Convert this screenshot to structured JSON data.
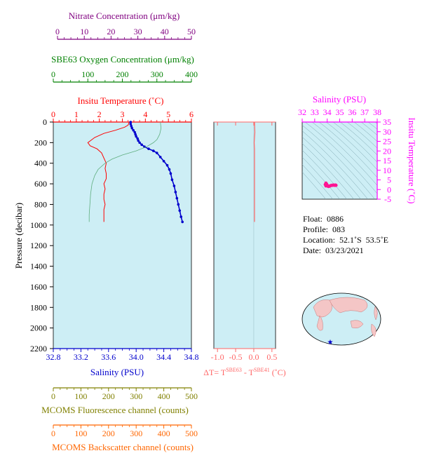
{
  "colors": {
    "nitrate": "#800080",
    "oxygen": "#008000",
    "temperature": "#ff0000",
    "salinity": "#0000cc",
    "delta": "#ff6666",
    "ts_axis": "#ff00ff",
    "fluorescence": "#808000",
    "backscatter": "#ff6600",
    "plot_bg": "#cdeef5"
  },
  "top_axes": {
    "nitrate": {
      "title": "Nitrate Concentration (μm/kg)",
      "ticks": [
        "0",
        "10",
        "20",
        "30",
        "40",
        "50"
      ]
    },
    "oxygen": {
      "title": "SBE63 Oxygen Concentration (μm/kg)",
      "ticks": [
        "0",
        "100",
        "200",
        "300",
        "400"
      ]
    },
    "temperature": {
      "title": "Insitu Temperature (˚C)",
      "ticks": [
        "0",
        "1",
        "2",
        "3",
        "4",
        "5",
        "6"
      ]
    }
  },
  "main_plot": {
    "ylabel": "Pressure (decibar)",
    "yticks": [
      "0",
      "200",
      "400",
      "600",
      "800",
      "1000",
      "1200",
      "1400",
      "1600",
      "1800",
      "2000",
      "2200"
    ],
    "xticks": [
      "32.8",
      "33.2",
      "33.6",
      "34.0",
      "34.4",
      "34.8"
    ],
    "xlabel": "Salinity (PSU)"
  },
  "delta_plot": {
    "xticks": [
      "-1.0",
      "-0.5",
      "0.0",
      "0.5"
    ],
    "xlabel": "ΔT= T",
    "sup1": "SBE63",
    "mid": " - T",
    "sup2": "SBE41",
    "unit": " (˚C)"
  },
  "ts_plot": {
    "title": "Salinity (PSU)",
    "xticks": [
      "32",
      "33",
      "34",
      "35",
      "36",
      "37",
      "38"
    ],
    "yticks": [
      "-5",
      "0",
      "5",
      "10",
      "15",
      "20",
      "25",
      "30",
      "35"
    ],
    "ylabel": "Insitu Temperature (˚C)"
  },
  "info": {
    "float": "Float:  0886",
    "profile": "Profile:  083",
    "location": "Location:  52.1˚S  53.5˚E",
    "date": "Date:  03/23/2021"
  },
  "bottom_axes": {
    "fluorescence": {
      "title": "MCOMS Fluorescence channel (counts)",
      "ticks": [
        "0",
        "100",
        "200",
        "300",
        "400",
        "500"
      ]
    },
    "backscatter": {
      "title": "MCOMS Backscatter channel (counts)",
      "ticks": [
        "0",
        "100",
        "200",
        "300",
        "400",
        "500"
      ]
    }
  },
  "chart_data": [
    {
      "type": "line",
      "name": "profile",
      "ylim": [
        2200,
        0
      ],
      "series": [
        {
          "name": "Salinity (PSU)",
          "xlim": [
            32.8,
            34.8
          ],
          "points": [
            [
              33.92,
              0
            ],
            [
              33.92,
              20
            ],
            [
              33.93,
              40
            ],
            [
              33.94,
              60
            ],
            [
              33.96,
              80
            ],
            [
              33.98,
              100
            ],
            [
              33.99,
              120
            ],
            [
              34.0,
              140
            ],
            [
              34.02,
              160
            ],
            [
              34.03,
              180
            ],
            [
              34.05,
              200
            ],
            [
              34.08,
              220
            ],
            [
              34.12,
              240
            ],
            [
              34.18,
              260
            ],
            [
              34.25,
              280
            ],
            [
              34.3,
              300
            ],
            [
              34.35,
              340
            ],
            [
              34.4,
              380
            ],
            [
              34.45,
              420
            ],
            [
              34.48,
              460
            ],
            [
              34.5,
              500
            ],
            [
              34.52,
              560
            ],
            [
              34.55,
              620
            ],
            [
              34.57,
              680
            ],
            [
              34.59,
              740
            ],
            [
              34.61,
              800
            ],
            [
              34.63,
              860
            ],
            [
              34.65,
              920
            ],
            [
              34.67,
              970
            ]
          ]
        },
        {
          "name": "Insitu Temperature (˚C)",
          "xlim": [
            0,
            6
          ],
          "points": [
            [
              3.3,
              0
            ],
            [
              3.25,
              30
            ],
            [
              3.1,
              50
            ],
            [
              2.7,
              80
            ],
            [
              2.2,
              110
            ],
            [
              1.8,
              150
            ],
            [
              1.5,
              200
            ],
            [
              1.6,
              230
            ],
            [
              1.9,
              260
            ],
            [
              2.1,
              300
            ],
            [
              2.2,
              350
            ],
            [
              2.3,
              400
            ],
            [
              2.25,
              450
            ],
            [
              2.3,
              500
            ],
            [
              2.3,
              550
            ],
            [
              2.2,
              600
            ],
            [
              2.25,
              650
            ],
            [
              2.2,
              700
            ],
            [
              2.2,
              750
            ],
            [
              2.25,
              800
            ],
            [
              2.2,
              850
            ],
            [
              2.2,
              900
            ],
            [
              2.2,
              950
            ],
            [
              2.2,
              970
            ]
          ]
        },
        {
          "name": "SBE63 Oxygen Concentration (μm/kg)",
          "xlim": [
            0,
            400
          ],
          "points": [
            [
              310,
              0
            ],
            [
              312,
              60
            ],
            [
              308,
              120
            ],
            [
              300,
              170
            ],
            [
              290,
              200
            ],
            [
              270,
              240
            ],
            [
              240,
              280
            ],
            [
              200,
              320
            ],
            [
              170,
              360
            ],
            [
              150,
              400
            ],
            [
              130,
              460
            ],
            [
              120,
              520
            ],
            [
              112,
              600
            ],
            [
              108,
              700
            ],
            [
              106,
              800
            ],
            [
              104,
              900
            ],
            [
              104,
              970
            ]
          ]
        }
      ]
    },
    {
      "type": "line",
      "name": "delta_temperature",
      "xlim": [
        -1.1,
        0.6
      ],
      "ylim": [
        2200,
        0
      ],
      "series": [
        {
          "name": "ΔT",
          "points": [
            [
              0.02,
              0
            ],
            [
              0.03,
              100
            ],
            [
              0.01,
              200
            ],
            [
              0.02,
              260
            ],
            [
              0.02,
              400
            ],
            [
              0.02,
              600
            ],
            [
              0.02,
              800
            ],
            [
              0.02,
              970
            ]
          ]
        }
      ]
    },
    {
      "type": "scatter",
      "name": "ts_diagram",
      "xlim": [
        32,
        38
      ],
      "ylim": [
        -5,
        35
      ],
      "series": [
        {
          "name": "T-S",
          "points": [
            [
              33.9,
              3.3
            ],
            [
              33.95,
              2.8
            ],
            [
              34.0,
              2.2
            ],
            [
              34.05,
              1.8
            ],
            [
              34.1,
              1.6
            ],
            [
              34.2,
              1.8
            ],
            [
              34.3,
              2.1
            ],
            [
              34.4,
              2.2
            ],
            [
              34.5,
              2.3
            ],
            [
              34.6,
              2.2
            ],
            [
              34.65,
              2.3
            ],
            [
              34.7,
              2.2
            ],
            [
              33.85,
              2.6
            ],
            [
              33.9,
              1.9
            ]
          ]
        }
      ]
    }
  ]
}
